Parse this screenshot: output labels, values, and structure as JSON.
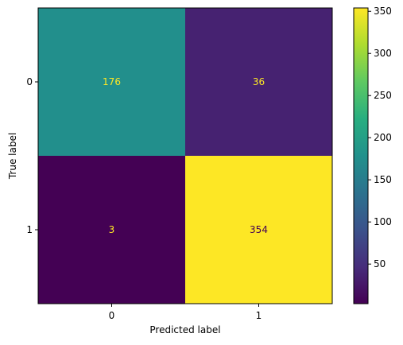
{
  "chart_data": {
    "type": "heatmap",
    "title": "",
    "xlabel": "Predicted label",
    "ylabel": "True label",
    "x_tick_labels": [
      "0",
      "1"
    ],
    "y_tick_labels": [
      "0",
      "1"
    ],
    "matrix": [
      [
        176,
        36
      ],
      [
        3,
        354
      ]
    ],
    "cell_labels": [
      [
        "176",
        "36"
      ],
      [
        "3",
        "354"
      ]
    ],
    "colormap": "viridis",
    "colorbar": {
      "range": [
        3,
        354
      ],
      "ticks": [
        50,
        100,
        150,
        200,
        250,
        300,
        350
      ],
      "tick_labels": [
        "50",
        "100",
        "150",
        "200",
        "250",
        "300",
        "350"
      ]
    },
    "label_colors": {
      "on_dark": "#fde725",
      "on_light": "#440154"
    }
  }
}
